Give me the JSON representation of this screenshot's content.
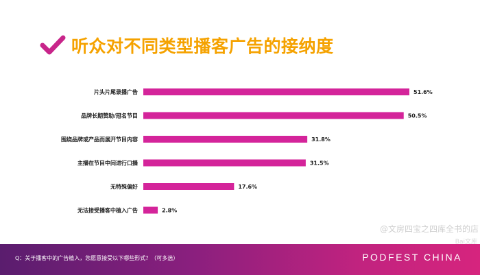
{
  "header": {
    "title": "听众对不同类型播客广告的接纳度",
    "icon": "checkmark-icon",
    "accent_color": "#f5a200",
    "check_color": "#c8258a"
  },
  "chart_data": {
    "type": "bar",
    "orientation": "horizontal",
    "title": "听众对不同类型播客广告的接纳度",
    "categories": [
      "片头片尾录播广告",
      "品牌长期赞助/冠名节目",
      "围绕品牌或产品而展开节目内容",
      "主播在节目中间进行口播",
      "无特殊偏好",
      "无法接受播客中植入广告"
    ],
    "values": [
      51.6,
      50.5,
      31.8,
      31.5,
      17.6,
      2.8
    ],
    "value_labels": [
      "51.6%",
      "50.5%",
      "31.8%",
      "31.5%",
      "17.6%",
      "2.8%"
    ],
    "unit": "%",
    "xlim": [
      0,
      51.6
    ],
    "bar_color": "#d4249a",
    "grid": false,
    "legend": "none"
  },
  "watermark": {
    "line1": "@文房四宝之四库全书的店",
    "line2": "Bai文库"
  },
  "footer": {
    "question": "Q：关于播客中的广告植入，您愿意接受以下哪些形式？（可多选）",
    "brand": "PODFEST CHINA",
    "gradient_colors": [
      "#5a1d6e",
      "#d6247e"
    ]
  }
}
